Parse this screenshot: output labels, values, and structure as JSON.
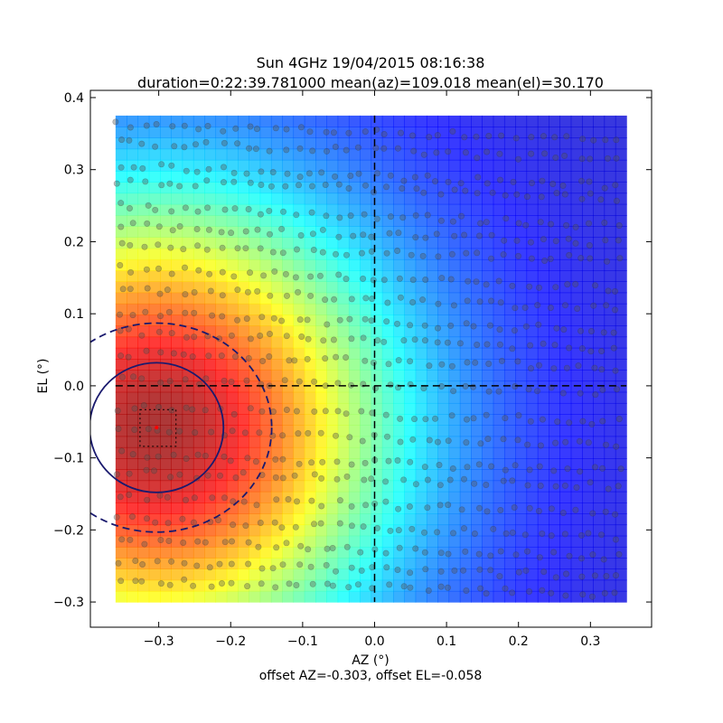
{
  "chart_data": {
    "type": "heatmap",
    "title_line1": "Sun 4GHz 19/04/2015 08:16:38",
    "title_line2": "duration=0:22:39.781000 mean(az)=109.018 mean(el)=30.170",
    "xlabel": "AZ (°)",
    "ylabel": "EL (°)",
    "footer": "offset AZ=-0.303, offset EL=-0.058",
    "xlim": [
      -0.395,
      0.385
    ],
    "ylim": [
      -0.335,
      0.41
    ],
    "xticks": [
      -0.3,
      -0.2,
      -0.1,
      0.0,
      0.1,
      0.2,
      0.3
    ],
    "xtick_labels": [
      "−0.3",
      "−0.2",
      "−0.1",
      "0.0",
      "0.1",
      "0.2",
      "0.3"
    ],
    "yticks": [
      -0.3,
      -0.2,
      -0.1,
      0.0,
      0.1,
      0.2,
      0.3,
      0.4
    ],
    "ytick_labels": [
      "−0.3",
      "−0.2",
      "−0.1",
      "0.0",
      "0.1",
      "0.2",
      "0.3",
      "0.4"
    ],
    "grid": false,
    "colormap": "jet",
    "heatmap_extent": {
      "x": [
        -0.36,
        0.35
      ],
      "y": [
        -0.3,
        0.375
      ]
    },
    "beam_center": {
      "az": -0.303,
      "el": -0.058
    },
    "beam_ellipse_solid": {
      "az_radius": 0.093,
      "el_radius": 0.09
    },
    "beam_ellipse_dashed": {
      "az_radius": 0.16,
      "el_radius": 0.145
    },
    "center_box": {
      "az": [
        -0.326,
        -0.276
      ],
      "el": [
        -0.084,
        -0.033
      ]
    },
    "crosshair": {
      "az": 0.0,
      "el": 0.0
    },
    "scan_points": {
      "az_start": -0.36,
      "az_end": 0.35,
      "rows": [
        {
          "el": 0.362,
          "tilt": -0.05
        },
        {
          "el": 0.338,
          "tilt": -0.06
        },
        {
          "el": 0.305,
          "tilt": -0.07
        },
        {
          "el": 0.285,
          "tilt": -0.06
        },
        {
          "el": 0.25,
          "tilt": -0.07
        },
        {
          "el": 0.222,
          "tilt": -0.06
        },
        {
          "el": 0.195,
          "tilt": -0.05
        },
        {
          "el": 0.163,
          "tilt": -0.07
        },
        {
          "el": 0.135,
          "tilt": -0.07
        },
        {
          "el": 0.1,
          "tilt": -0.06
        },
        {
          "el": 0.075,
          "tilt": -0.06
        },
        {
          "el": 0.045,
          "tilt": -0.05
        },
        {
          "el": 0.01,
          "tilt": -0.05
        },
        {
          "el": -0.03,
          "tilt": -0.05
        },
        {
          "el": -0.06,
          "tilt": -0.06
        },
        {
          "el": -0.095,
          "tilt": -0.06
        },
        {
          "el": -0.12,
          "tilt": -0.05
        },
        {
          "el": -0.155,
          "tilt": -0.05
        },
        {
          "el": -0.185,
          "tilt": -0.06
        },
        {
          "el": -0.215,
          "tilt": -0.06
        },
        {
          "el": -0.245,
          "tilt": -0.05
        },
        {
          "el": -0.27,
          "tilt": -0.05
        }
      ]
    },
    "colors": {
      "ellipse": "#1a1a6e",
      "crosshair": "#000000",
      "points": "#555555",
      "center_marker": "#ff0000"
    }
  }
}
